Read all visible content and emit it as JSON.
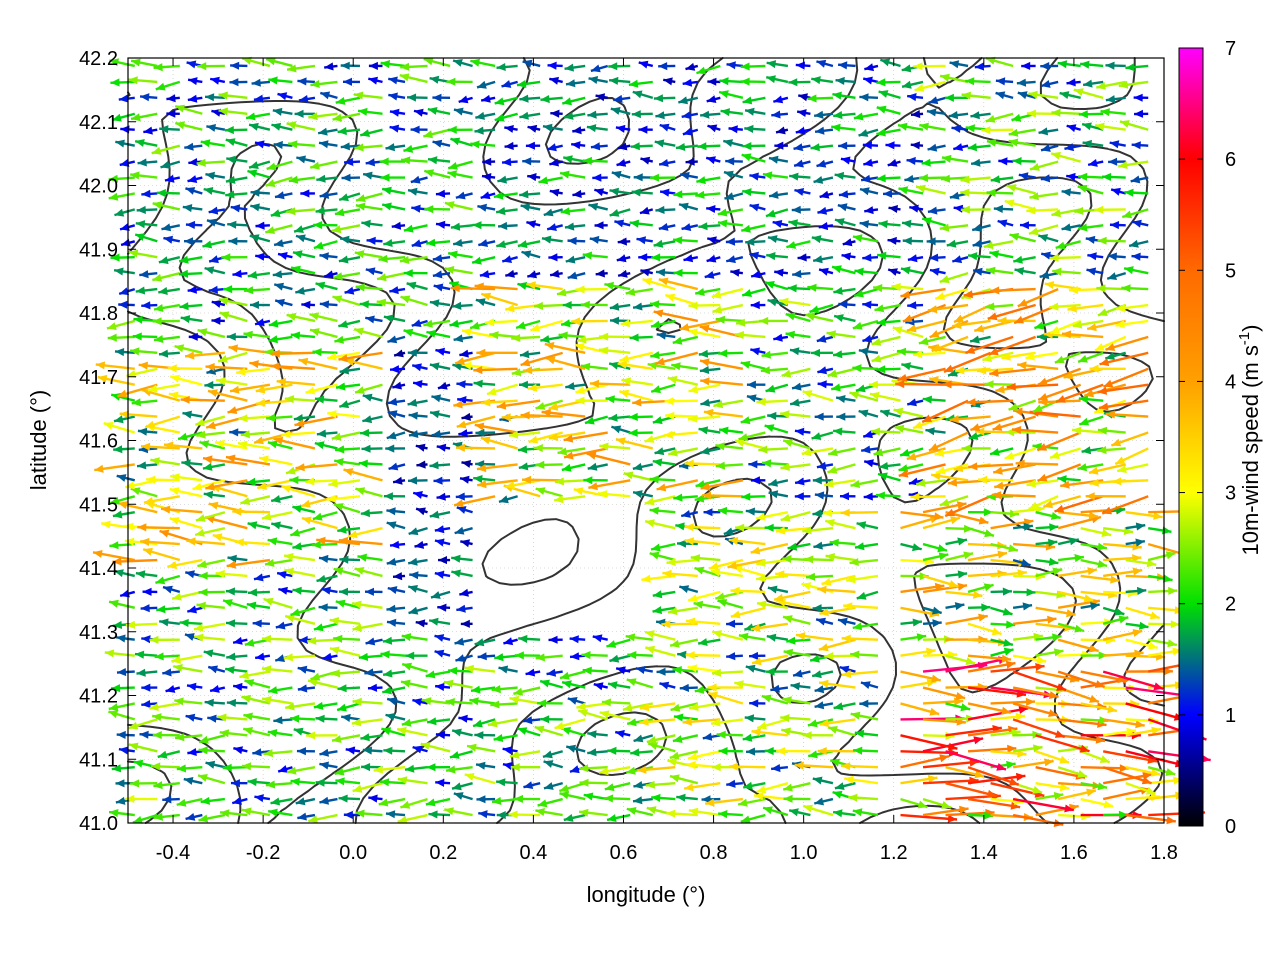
{
  "chart_data": {
    "type": "scatter",
    "subtype": "wind-vector-field-with-contours",
    "xlabel": "longitude (°)",
    "ylabel": "latitude (°)",
    "xlim": [
      -0.5,
      1.8
    ],
    "ylim": [
      41.0,
      42.2
    ],
    "x_ticks": [
      "-0.4",
      "-0.2",
      "0.0",
      "0.2",
      "0.4",
      "0.6",
      "0.8",
      "1.0",
      "1.2",
      "1.4",
      "1.6",
      "1.8"
    ],
    "y_ticks": [
      "41.0",
      "41.1",
      "41.2",
      "41.3",
      "41.4",
      "41.5",
      "41.6",
      "41.7",
      "41.8",
      "41.9",
      "42.0",
      "42.1",
      "42.2"
    ],
    "grid": true,
    "colorbar": {
      "label_main": "10m-wind speed (m s",
      "label_sup": "-1",
      "label_end": ")",
      "range": [
        0,
        7
      ],
      "ticks": [
        "0",
        "1",
        "2",
        "3",
        "4",
        "5",
        "6",
        "7"
      ],
      "palette": [
        "#000000",
        "#0000ff",
        "#00e000",
        "#ffff00",
        "#ff8c00",
        "#ff0000",
        "#ff00ff"
      ]
    },
    "wind_regions": [
      {
        "x": [
          -0.5,
          0.1
        ],
        "y": [
          41.0,
          41.4
        ],
        "u": -2.0,
        "v": 0.0,
        "speed": 2.0
      },
      {
        "x": [
          -0.5,
          0.1
        ],
        "y": [
          41.4,
          41.75
        ],
        "u": -3.0,
        "v": 0.0,
        "speed": 3.0
      },
      {
        "x": [
          -0.5,
          0.3
        ],
        "y": [
          41.75,
          42.2
        ],
        "u": -1.8,
        "v": 0.0,
        "speed": 1.8
      },
      {
        "x": [
          0.1,
          0.3
        ],
        "y": [
          41.3,
          41.75
        ],
        "u": -1.2,
        "v": 0.0,
        "speed": 1.2
      },
      {
        "x": [
          0.3,
          0.9
        ],
        "y": [
          41.5,
          41.85
        ],
        "u": -3.0,
        "v": 0.0,
        "speed": 3.0
      },
      {
        "x": [
          0.9,
          1.3
        ],
        "y": [
          41.5,
          41.85
        ],
        "u": -2.0,
        "v": 0.0,
        "speed": 2.0
      },
      {
        "x": [
          1.3,
          1.8
        ],
        "y": [
          41.5,
          41.85
        ],
        "u": -3.5,
        "v": -0.5,
        "speed": 3.5
      },
      {
        "x": [
          0.3,
          1.3
        ],
        "y": [
          41.85,
          42.2
        ],
        "u": -1.5,
        "v": 0.0,
        "speed": 1.5
      },
      {
        "x": [
          1.3,
          1.8
        ],
        "y": [
          41.85,
          42.2
        ],
        "u": -2.0,
        "v": 0.0,
        "speed": 2.0
      },
      {
        "x": [
          0.1,
          0.7
        ],
        "y": [
          41.0,
          41.3
        ],
        "u": -2.0,
        "v": 0.0,
        "speed": 2.0
      },
      {
        "x": [
          0.7,
          1.2
        ],
        "y": [
          41.0,
          41.5
        ],
        "u": -2.5,
        "v": 0.0,
        "speed": 2.5
      },
      {
        "x": [
          1.2,
          1.8
        ],
        "y": [
          41.0,
          41.25
        ],
        "u": 4.5,
        "v": -0.3,
        "speed": 4.5
      },
      {
        "x": [
          1.2,
          1.8
        ],
        "y": [
          41.25,
          41.5
        ],
        "u": 3.0,
        "v": 0.0,
        "speed": 3.0
      }
    ],
    "contour_levels_note": "terrain elevation contours (unlabelled)"
  }
}
